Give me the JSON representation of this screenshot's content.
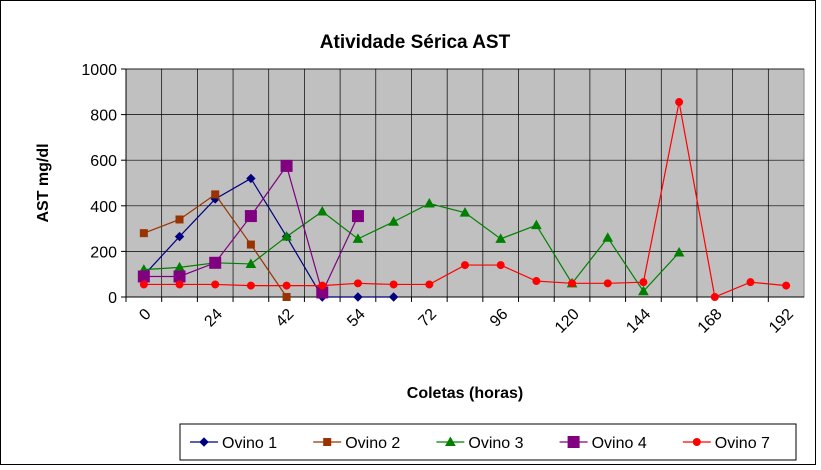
{
  "chart_data": {
    "type": "line",
    "title": "Atividade Sérica AST",
    "xlabel": "Coletas (horas)",
    "ylabel": "AST mg/dl",
    "categories": [
      "0",
      null,
      "24",
      null,
      "42",
      null,
      "54",
      null,
      "72",
      null,
      "96",
      null,
      "120",
      null,
      "144",
      null,
      "168",
      null,
      "192"
    ],
    "ylim": [
      0,
      1000
    ],
    "yticks": [
      0,
      200,
      400,
      600,
      800,
      1000
    ],
    "grid": true,
    "legend": "bottom",
    "series": [
      {
        "name": "Ovino 1",
        "color": "#000080",
        "marker": "diamond",
        "values": [
          95,
          265,
          430,
          520,
          265,
          0,
          0,
          0,
          null,
          null,
          null,
          null,
          null,
          null,
          null,
          null,
          null,
          null,
          null
        ]
      },
      {
        "name": "Ovino 2",
        "color": "#993300",
        "marker": "square",
        "values": [
          280,
          340,
          450,
          230,
          0,
          null,
          null,
          null,
          null,
          null,
          null,
          null,
          null,
          null,
          null,
          null,
          null,
          null,
          null
        ]
      },
      {
        "name": "Ovino 3",
        "color": "#008000",
        "marker": "triangle",
        "values": [
          120,
          130,
          150,
          145,
          265,
          375,
          255,
          330,
          410,
          370,
          255,
          315,
          60,
          260,
          25,
          195,
          null,
          null,
          null
        ]
      },
      {
        "name": "Ovino 4",
        "color": "#800080",
        "marker": "bigsquare",
        "values": [
          90,
          90,
          150,
          355,
          575,
          20,
          355,
          null,
          null,
          null,
          null,
          null,
          null,
          null,
          null,
          null,
          null,
          null,
          null
        ]
      },
      {
        "name": "Ovino 7",
        "color": "#ff0000",
        "marker": "circle",
        "values": [
          55,
          55,
          55,
          50,
          50,
          50,
          60,
          55,
          55,
          140,
          140,
          70,
          60,
          60,
          65,
          855,
          0,
          65,
          50
        ]
      }
    ]
  }
}
